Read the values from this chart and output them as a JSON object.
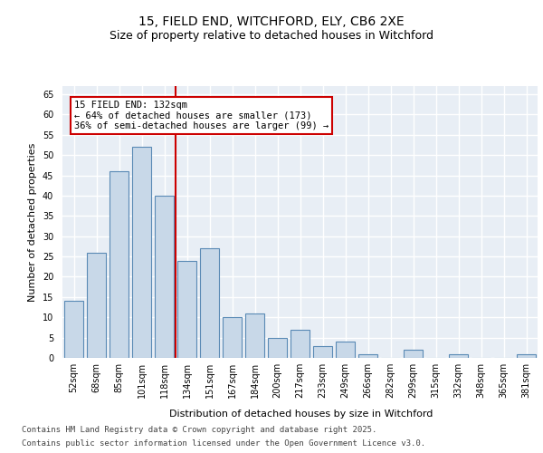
{
  "title_line1": "15, FIELD END, WITCHFORD, ELY, CB6 2XE",
  "title_line2": "Size of property relative to detached houses in Witchford",
  "xlabel": "Distribution of detached houses by size in Witchford",
  "ylabel": "Number of detached properties",
  "categories": [
    "52sqm",
    "68sqm",
    "85sqm",
    "101sqm",
    "118sqm",
    "134sqm",
    "151sqm",
    "167sqm",
    "184sqm",
    "200sqm",
    "217sqm",
    "233sqm",
    "249sqm",
    "266sqm",
    "282sqm",
    "299sqm",
    "315sqm",
    "332sqm",
    "348sqm",
    "365sqm",
    "381sqm"
  ],
  "values": [
    14,
    26,
    46,
    52,
    40,
    24,
    27,
    10,
    11,
    5,
    7,
    3,
    4,
    1,
    0,
    2,
    0,
    1,
    0,
    0,
    1
  ],
  "bar_color": "#c8d8e8",
  "bar_edge_color": "#5a8ab5",
  "background_color": "#e8eef5",
  "grid_color": "#ffffff",
  "red_line_index": 5,
  "red_line_color": "#cc0000",
  "annotation_line1": "15 FIELD END: 132sqm",
  "annotation_line2": "← 64% of detached houses are smaller (173)",
  "annotation_line3": "36% of semi-detached houses are larger (99) →",
  "annotation_box_color": "#cc0000",
  "footnote_line1": "Contains HM Land Registry data © Crown copyright and database right 2025.",
  "footnote_line2": "Contains public sector information licensed under the Open Government Licence v3.0.",
  "ylim": [
    0,
    67
  ],
  "yticks": [
    0,
    5,
    10,
    15,
    20,
    25,
    30,
    35,
    40,
    45,
    50,
    55,
    60,
    65
  ],
  "title_fontsize": 10,
  "subtitle_fontsize": 9,
  "ylabel_fontsize": 8,
  "xlabel_fontsize": 8,
  "tick_fontsize": 7,
  "annot_fontsize": 7.5,
  "footnote_fontsize": 6.5
}
